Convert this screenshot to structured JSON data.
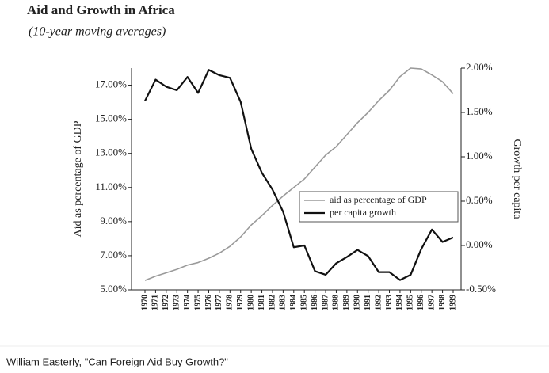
{
  "chart_data": {
    "type": "line",
    "title": "Aid and Growth in Africa",
    "subtitle": "(10-year moving averages)",
    "source": "William Easterly, \"Can Foreign Aid Buy Growth?\"",
    "y_label": "Aid as percentage of GDP",
    "y2_label": "Growth per capita",
    "categories": [
      "1970",
      "1971",
      "1972",
      "1973",
      "1974",
      "1975",
      "1976",
      "1977",
      "1978",
      "1979",
      "1980",
      "1981",
      "1982",
      "1983",
      "1984",
      "1985",
      "1986",
      "1987",
      "1988",
      "1989",
      "1990",
      "1991",
      "1992",
      "1993",
      "1994",
      "1995",
      "1996",
      "1997",
      "1998",
      "1999"
    ],
    "series": [
      {
        "name": "aid as percentage of GDP",
        "color": "#9a9a9a",
        "axis": "y",
        "values": [
          5.55,
          5.8,
          6.0,
          6.2,
          6.45,
          6.6,
          6.85,
          7.15,
          7.55,
          8.1,
          8.8,
          9.35,
          9.95,
          10.5,
          11.0,
          11.5,
          12.2,
          12.9,
          13.4,
          14.1,
          14.8,
          15.4,
          16.1,
          16.7,
          17.5,
          18.0,
          17.95,
          17.6,
          17.2,
          16.5
        ]
      },
      {
        "name": "per capita growth",
        "color": "#111111",
        "axis": "y2",
        "values": [
          1.63,
          1.87,
          1.79,
          1.75,
          1.9,
          1.72,
          1.98,
          1.92,
          1.89,
          1.62,
          1.09,
          0.82,
          0.63,
          0.38,
          -0.02,
          0.0,
          -0.29,
          -0.33,
          -0.2,
          -0.13,
          -0.05,
          -0.12,
          -0.3,
          -0.3,
          -0.39,
          -0.33,
          -0.04,
          0.18,
          0.04,
          0.09
        ]
      }
    ],
    "ylim": [
      5,
      18
    ],
    "yticks": [
      {
        "value": 5,
        "label": "5.00%"
      },
      {
        "value": 7,
        "label": "7.00%"
      },
      {
        "value": 9,
        "label": "9.00%"
      },
      {
        "value": 11,
        "label": "11.00%"
      },
      {
        "value": 13,
        "label": "13.00%"
      },
      {
        "value": 15,
        "label": "15.00%"
      },
      {
        "value": 17,
        "label": "17.00%"
      }
    ],
    "y2lim": [
      -0.5,
      2.0
    ],
    "y2ticks": [
      {
        "value": -0.5,
        "label": "-0.50%"
      },
      {
        "value": 0,
        "label": "0.00%"
      },
      {
        "value": 0.5,
        "label": "0.50%"
      },
      {
        "value": 1,
        "label": "1.00%"
      },
      {
        "value": 1.5,
        "label": "1.50%"
      },
      {
        "value": 2,
        "label": "2.00%"
      }
    ],
    "legend": "center-right",
    "grid": false
  }
}
